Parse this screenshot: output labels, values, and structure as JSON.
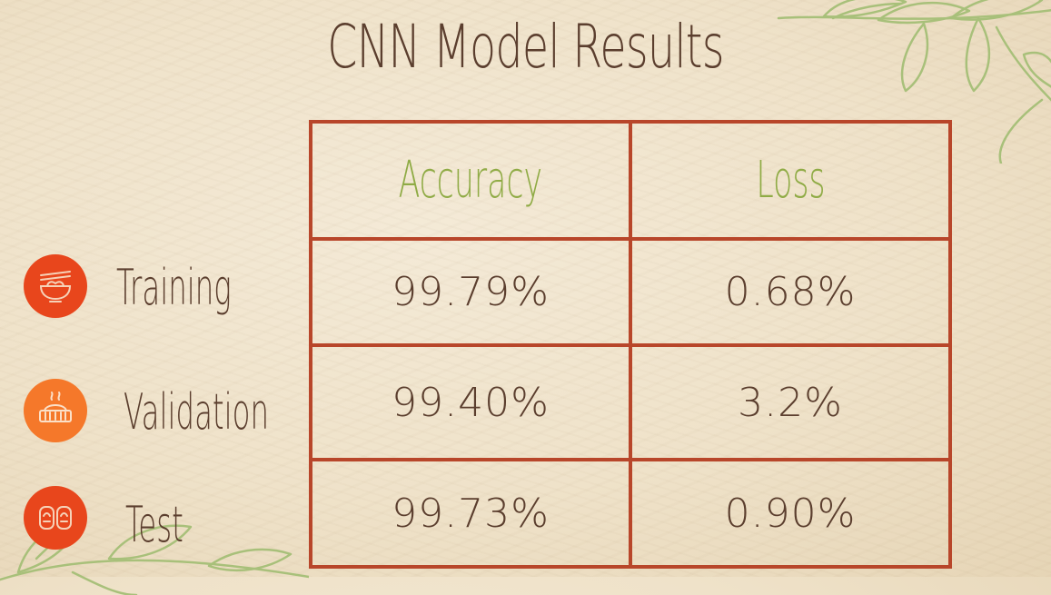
{
  "slide": {
    "title": "CNN Model Results"
  },
  "table": {
    "headers": [
      "Accuracy",
      "Loss"
    ],
    "rows": [
      {
        "label": "Training",
        "icon": "noodle-bowl-icon",
        "icon_color": "#e8461c",
        "accuracy": "99.79%",
        "loss": "0.68%"
      },
      {
        "label": "Validation",
        "icon": "dumpling-basket-icon",
        "icon_color": "#f5782a",
        "accuracy": "99.40%",
        "loss": "3.2%"
      },
      {
        "label": "Test",
        "icon": "dumplings-icon",
        "icon_color": "#e8461c",
        "accuracy": "99.73%",
        "loss": "0.90%"
      }
    ]
  },
  "colors": {
    "title": "#5b3e2e",
    "header": "#8fab45",
    "grid": "#b8462a",
    "leaf": "#a8c07a"
  }
}
